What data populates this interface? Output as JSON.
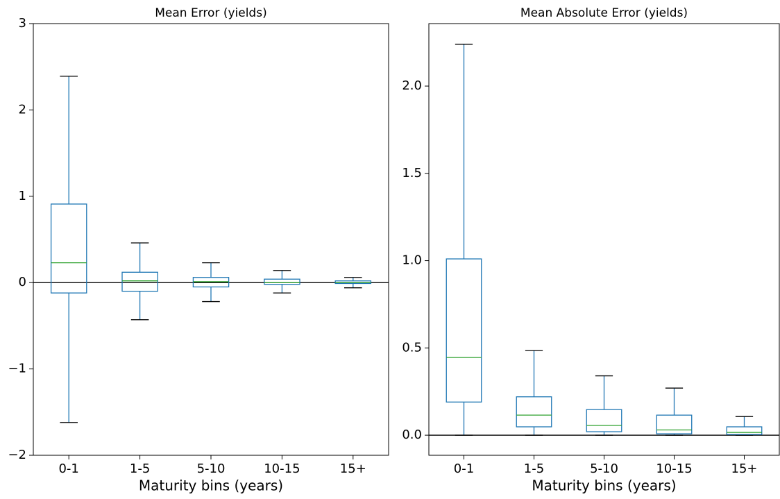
{
  "chart_data": [
    {
      "type": "box",
      "title": "Mean Error (yields)",
      "x_label": "Maturity bins (years)",
      "categories": [
        "0-1",
        "1-5",
        "5-10",
        "10-15",
        "15+"
      ],
      "min": [
        -1.62,
        -0.43,
        -0.22,
        -0.12,
        -0.06
      ],
      "q1": [
        -0.12,
        -0.1,
        -0.05,
        -0.02,
        -0.01
      ],
      "median": [
        0.23,
        0.02,
        0.01,
        0.0,
        0.0
      ],
      "q3": [
        0.91,
        0.12,
        0.06,
        0.04,
        0.02
      ],
      "max": [
        2.39,
        0.46,
        0.23,
        0.14,
        0.06
      ],
      "box_color": "#1f77b4",
      "median_color": "#2ca02c",
      "hline": 0,
      "ylim": [
        -2,
        3
      ],
      "yticks": [
        {
          "value": -2,
          "label": "−2"
        },
        {
          "value": -1,
          "label": "−1"
        },
        0,
        1,
        2,
        3
      ]
    },
    {
      "type": "box",
      "title": "Mean Absolute Error (yields)",
      "x_label": "Maturity bins (years)",
      "categories": [
        "0-1",
        "1-5",
        "5-10",
        "10-15",
        "15+"
      ],
      "min": [
        0.0,
        0.0,
        0.0,
        0.0,
        0.0
      ],
      "q1": [
        0.19,
        0.048,
        0.02,
        0.008,
        0.004
      ],
      "median": [
        0.445,
        0.115,
        0.056,
        0.03,
        0.016
      ],
      "q3": [
        1.01,
        0.22,
        0.147,
        0.115,
        0.048
      ],
      "max": [
        2.24,
        0.485,
        0.34,
        0.27,
        0.107
      ],
      "box_color": "#1f77b4",
      "median_color": "#2ca02c",
      "hline": 0,
      "ylim": [
        -0.115,
        2.358
      ],
      "yticks": [
        {
          "value": 0,
          "label": "0.0"
        },
        0.5,
        {
          "value": 1,
          "label": "1.0"
        },
        1.5,
        {
          "value": 2,
          "label": "2.0"
        }
      ]
    }
  ]
}
